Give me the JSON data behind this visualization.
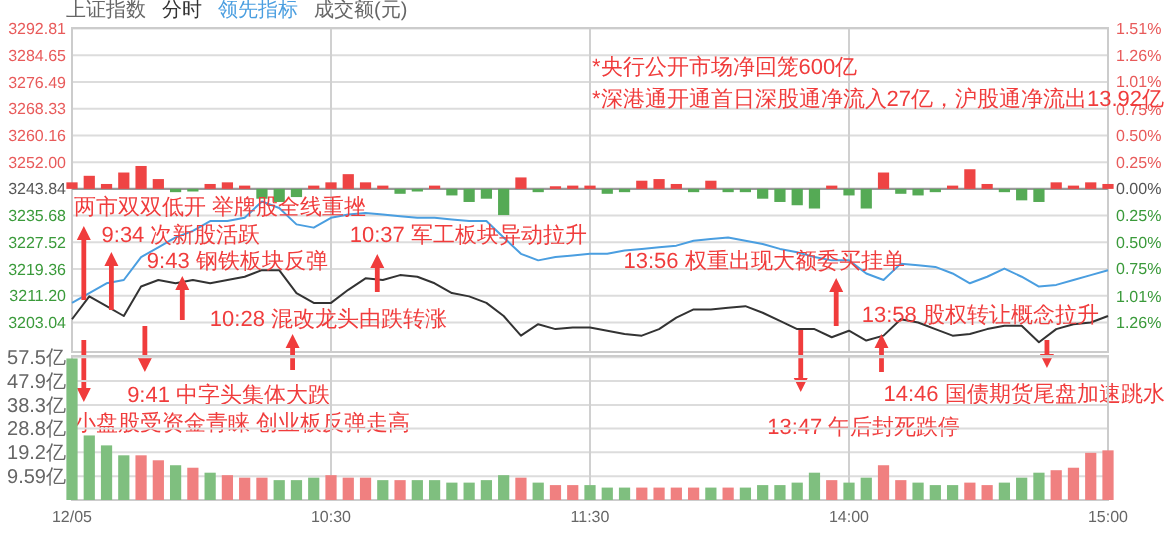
{
  "chart_data": [
    {
      "type": "line",
      "title": "上证指数",
      "legend": "top left",
      "grid": true,
      "tick_labels": "y",
      "ylim": [
        3194,
        3293
      ],
      "yticks": [
        {
          "value": 3203.04,
          "label": "3203.04"
        },
        {
          "value": 3211.2,
          "label": "3211.20"
        },
        {
          "value": 3219.36,
          "label": "3219.36"
        },
        {
          "value": 3227.52,
          "label": "3227.52"
        },
        {
          "value": 3235.68,
          "label": "3235.68"
        },
        {
          "value": 3243.84,
          "label": "3243.84"
        },
        {
          "value": 3252,
          "label": "3252.00"
        },
        {
          "value": 3260.16,
          "label": "3260.16"
        },
        {
          "value": 3268.33,
          "label": "3268.33"
        },
        {
          "value": 3276.49,
          "label": "3276.49"
        },
        {
          "value": 3284.65,
          "label": "3284.65"
        },
        {
          "value": 3292.81,
          "label": "3292.81"
        }
      ],
      "y2lim": [
        -1.536,
        1.515
      ],
      "y2ticks": [
        {
          "value": -1.26,
          "label": "1.26%"
        },
        {
          "value": -1.01,
          "label": "1.01%"
        },
        {
          "value": -0.75,
          "label": "0.75%"
        },
        {
          "value": -0.5,
          "label": "0.50%"
        },
        {
          "value": -0.25,
          "label": "0.25%"
        },
        {
          "value": 0,
          "label": "0.00%"
        },
        {
          "value": 0.25,
          "label": "0.25%"
        },
        {
          "value": 0.5,
          "label": "0.50%"
        },
        {
          "value": 0.75,
          "label": "0.75%"
        },
        {
          "value": 1.01,
          "label": "1.01%"
        },
        {
          "value": 1.26,
          "label": "1.26%"
        },
        {
          "value": 1.51,
          "label": "1.51%"
        }
      ],
      "ref_lines": [
        {
          "axis": "y",
          "value": 3243.84,
          "color": "#999999"
        }
      ],
      "series": [
        {
          "name": "分时",
          "color": "#333333",
          "values": [
            3204,
            3211,
            3208,
            3205,
            3214,
            3216,
            3215,
            3216,
            3215,
            3216,
            3217,
            3219,
            3219,
            3212,
            3209,
            3209,
            3213,
            3216.5,
            3216,
            3217.5,
            3217,
            3215,
            3212,
            3211,
            3209,
            3205,
            3199,
            3202.5,
            3201,
            3201.5,
            3201.5,
            3200.5,
            3199.5,
            3199,
            3201,
            3204.5,
            3207,
            3207,
            3207.5,
            3208,
            3206,
            3203.5,
            3201,
            3201,
            3198.5,
            3200.5,
            3197.5,
            3199,
            3204,
            3203,
            3201,
            3199,
            3199.5,
            3201,
            3202,
            3202,
            3197,
            3201,
            3202.5,
            3203,
            3205
          ]
        },
        {
          "name": "领先指标",
          "color": "#4a9ee0",
          "values": [
            3209,
            3212,
            3215,
            3216,
            3223,
            3226,
            3229,
            3231,
            3234,
            3234,
            3235,
            3240,
            3238,
            3233,
            3232,
            3235,
            3236,
            3236.5,
            3236,
            3235.5,
            3235,
            3235,
            3234.5,
            3234,
            3234,
            3229,
            3224,
            3222,
            3223,
            3223.5,
            3224,
            3224,
            3225,
            3225.5,
            3226,
            3226.5,
            3228,
            3228.5,
            3229,
            3228,
            3227,
            3225.5,
            3224.5,
            3223,
            3222,
            3222,
            3218,
            3216,
            3221,
            3220.5,
            3220,
            3218,
            3215,
            3217,
            3219.5,
            3217,
            3214,
            3214.5,
            3216,
            3217.5,
            3219
          ]
        },
        {
          "type": "bar",
          "base": [
            3243.84,
            3243.84,
            3243.84,
            3243.84,
            3243.84,
            3243.84,
            3243.84,
            3243.84,
            3243.84,
            3243.84,
            3243.84,
            3243.84,
            3243.84,
            3243.84,
            3243.84,
            3243.84,
            3243.84,
            3243.84,
            3243.84,
            3243.84,
            3243.84,
            3243.84,
            3243.84,
            3243.84,
            3243.84,
            3243.84,
            3243.84,
            3243.84,
            3243.84,
            3243.84,
            3243.84,
            3243.84,
            3243.84,
            3243.84,
            3243.84,
            3243.84,
            3243.84,
            3243.84,
            3243.84,
            3243.84,
            3243.84,
            3243.84,
            3243.84,
            3243.84,
            3243.84,
            3243.84,
            3243.84,
            3243.84,
            3243.84,
            3243.84,
            3243.84,
            3243.84,
            3243.84,
            3243.84,
            3243.84,
            3243.84,
            3243.84,
            3243.84,
            3243.84,
            3243.84,
            3243.84
          ],
          "values": [
            2,
            4,
            1.5,
            5,
            7,
            3,
            -1,
            -0.8,
            1.5,
            2,
            1,
            -3,
            -4,
            -2.5,
            1,
            2,
            4.5,
            2,
            1,
            -1.5,
            -0.8,
            1,
            -2,
            -4,
            -3,
            -8,
            3.5,
            -1,
            0.8,
            1,
            1,
            -1.5,
            -1,
            2.5,
            3,
            1.5,
            -1,
            2.5,
            -1,
            -1,
            -3,
            -4,
            -5,
            -6,
            1,
            -2,
            -6,
            5,
            -1.5,
            -2,
            -1,
            1,
            6,
            1.5,
            -1,
            -3.5,
            -4,
            2,
            1,
            2,
            1.5
          ],
          "colors": [
            "#ee4444",
            "#ee4444",
            "#ee4444",
            "#ee4444",
            "#ee4444",
            "#ee4444",
            "#55aa55",
            "#55aa55",
            "#ee4444",
            "#ee4444",
            "#ee4444",
            "#55aa55",
            "#55aa55",
            "#55aa55",
            "#ee4444",
            "#ee4444",
            "#ee4444",
            "#ee4444",
            "#ee4444",
            "#55aa55",
            "#55aa55",
            "#ee4444",
            "#55aa55",
            "#55aa55",
            "#55aa55",
            "#55aa55",
            "#ee4444",
            "#55aa55",
            "#ee4444",
            "#ee4444",
            "#ee4444",
            "#55aa55",
            "#55aa55",
            "#ee4444",
            "#ee4444",
            "#ee4444",
            "#55aa55",
            "#ee4444",
            "#55aa55",
            "#55aa55",
            "#55aa55",
            "#55aa55",
            "#55aa55",
            "#55aa55",
            "#ee4444",
            "#55aa55",
            "#55aa55",
            "#ee4444",
            "#55aa55",
            "#55aa55",
            "#55aa55",
            "#ee4444",
            "#ee4444",
            "#ee4444",
            "#55aa55",
            "#55aa55",
            "#55aa55",
            "#ee4444",
            "#ee4444",
            "#ee4444",
            "#ee4444"
          ]
        }
      ],
      "annotations": [
        "*央行公开市场净回笼600亿",
        "*深港通开通首日深股通净流入27亿，沪股通净流出13.92亿",
        "两市双双低开 举牌股全线重挫",
        "9:34 次新股活跃",
        "9:43 钢铁板块反弹",
        "9:41 中字头集体大跌",
        "小盘股受资金青睐 创业板反弹走高",
        "10:37 军工板块异动拉升",
        "10:28 混改龙头由跌转涨",
        "13:56 权重出现大额委买挂单",
        "13:47 午后封死跌停",
        "13:58 股权转让概念拉升",
        "14:46 国债期货尾盘加速跳水",
        "成交额(元)"
      ]
    },
    {
      "type": "bar",
      "grid": true,
      "categories": [
        "12/05",
        null,
        null,
        null,
        null,
        null,
        null,
        null,
        null,
        null,
        null,
        null,
        null,
        null,
        null,
        "10:30",
        null,
        null,
        null,
        null,
        null,
        null,
        null,
        null,
        null,
        null,
        null,
        null,
        null,
        null,
        "11:30",
        null,
        null,
        null,
        null,
        null,
        null,
        null,
        null,
        null,
        null,
        null,
        null,
        null,
        null,
        "14:00",
        null,
        null,
        null,
        null,
        null,
        null,
        null,
        null,
        null,
        null,
        null,
        null,
        null,
        null,
        "15:00"
      ],
      "ylim": [
        0,
        58
      ],
      "yticks": [
        {
          "value": 9.59,
          "label": "9.59亿"
        },
        {
          "value": 19.2,
          "label": "19.2亿"
        },
        {
          "value": 28.8,
          "label": "28.8亿"
        },
        {
          "value": 38.3,
          "label": "38.3亿"
        },
        {
          "value": 47.9,
          "label": "47.9亿"
        },
        {
          "value": 57.5,
          "label": "57.5亿"
        }
      ],
      "values": [
        57,
        26,
        22,
        18,
        18,
        16,
        14,
        13,
        11,
        10,
        9,
        9,
        8,
        8,
        9,
        10,
        9,
        9,
        8,
        8,
        8,
        8,
        7,
        7,
        8,
        10,
        9,
        7,
        6,
        6,
        6,
        5,
        5,
        5,
        5,
        5,
        5,
        5,
        5,
        5,
        6,
        6,
        7,
        11,
        8,
        7,
        9,
        14,
        8,
        7,
        6,
        6,
        7,
        6,
        7,
        9,
        11,
        12,
        13,
        19,
        20
      ],
      "colors": [
        "#7fbf7f",
        "#7fbf7f",
        "#7fbf7f",
        "#7fbf7f",
        "#f08080",
        "#f08080",
        "#7fbf7f",
        "#f08080",
        "#7fbf7f",
        "#f08080",
        "#f08080",
        "#f08080",
        "#7fbf7f",
        "#7fbf7f",
        "#7fbf7f",
        "#f08080",
        "#f08080",
        "#f08080",
        "#7fbf7f",
        "#f08080",
        "#7fbf7f",
        "#7fbf7f",
        "#7fbf7f",
        "#7fbf7f",
        "#7fbf7f",
        "#7fbf7f",
        "#f08080",
        "#7fbf7f",
        "#f08080",
        "#f08080",
        "#7fbf7f",
        "#7fbf7f",
        "#7fbf7f",
        "#f08080",
        "#f08080",
        "#f08080",
        "#f08080",
        "#7fbf7f",
        "#f08080",
        "#7fbf7f",
        "#7fbf7f",
        "#7fbf7f",
        "#7fbf7f",
        "#7fbf7f",
        "#f08080",
        "#7fbf7f",
        "#7fbf7f",
        "#f08080",
        "#f08080",
        "#7fbf7f",
        "#7fbf7f",
        "#7fbf7f",
        "#f08080",
        "#f08080",
        "#7fbf7f",
        "#7fbf7f",
        "#7fbf7f",
        "#f08080",
        "#f08080",
        "#f08080",
        "#f08080"
      ]
    }
  ]
}
